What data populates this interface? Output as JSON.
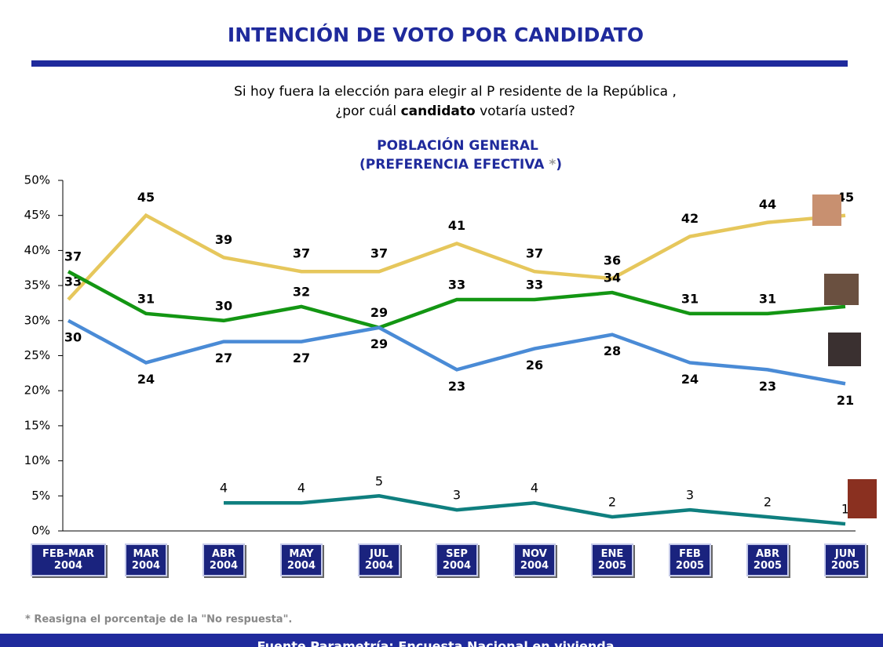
{
  "chart_data": {
    "type": "line",
    "title": "INTENCIÓN DE VOTO POR CANDIDATO",
    "subtitle": "Si hoy fuera la elección para elegir al P residente de la República ,",
    "question": [
      "¿por cuál",
      "candidato",
      "votaría usted?"
    ],
    "chart_title": "POBLACIÓN GENERAL",
    "chart_subtitle": [
      "(PREFERENCIA EFECTIVA",
      "*",
      ")"
    ],
    "categories": [
      "FEB-MAR 2004",
      "MAR 2004",
      "ABR 2004",
      "MAY 2004",
      "JUL 2004",
      "SEP 2004",
      "NOV 2004",
      "ENE 2005",
      "FEB 2005",
      "ABR 2005",
      "JUN 2005"
    ],
    "series": [
      {
        "color": "#e6c75c",
        "values": [
          33,
          45,
          39,
          37,
          37,
          41,
          37,
          36,
          42,
          44,
          45
        ]
      },
      {
        "color": "#139613",
        "values": [
          37,
          31,
          30,
          32,
          29,
          33,
          33,
          34,
          31,
          31,
          32
        ]
      },
      {
        "color": "#4a8bd6",
        "values": [
          30,
          24,
          27,
          27,
          29,
          23,
          26,
          28,
          24,
          23,
          21
        ]
      },
      {
        "color": "#0f7f7f",
        "values": [
          null,
          null,
          4,
          4,
          5,
          3,
          4,
          2,
          3,
          2,
          1
        ]
      }
    ],
    "ylim": [
      0,
      50
    ],
    "yticks": [
      {
        "value": 0,
        "label": "0%"
      },
      {
        "value": 5,
        "label": "5%"
      },
      {
        "value": 10,
        "label": "10%"
      },
      {
        "value": 15,
        "label": "15%"
      },
      {
        "value": 20,
        "label": "20%"
      },
      {
        "value": 25,
        "label": "25%"
      },
      {
        "value": 30,
        "label": "30%"
      },
      {
        "value": 35,
        "label": "35%"
      },
      {
        "value": 40,
        "label": "40%"
      },
      {
        "value": 45,
        "label": "45%"
      },
      {
        "value": 50,
        "label": "50%"
      }
    ],
    "footnote": "* Reasigna el porcentaje de la \"No respuesta\".",
    "source": "Fuente Parametría: Encuesta Nacional en vivienda"
  }
}
